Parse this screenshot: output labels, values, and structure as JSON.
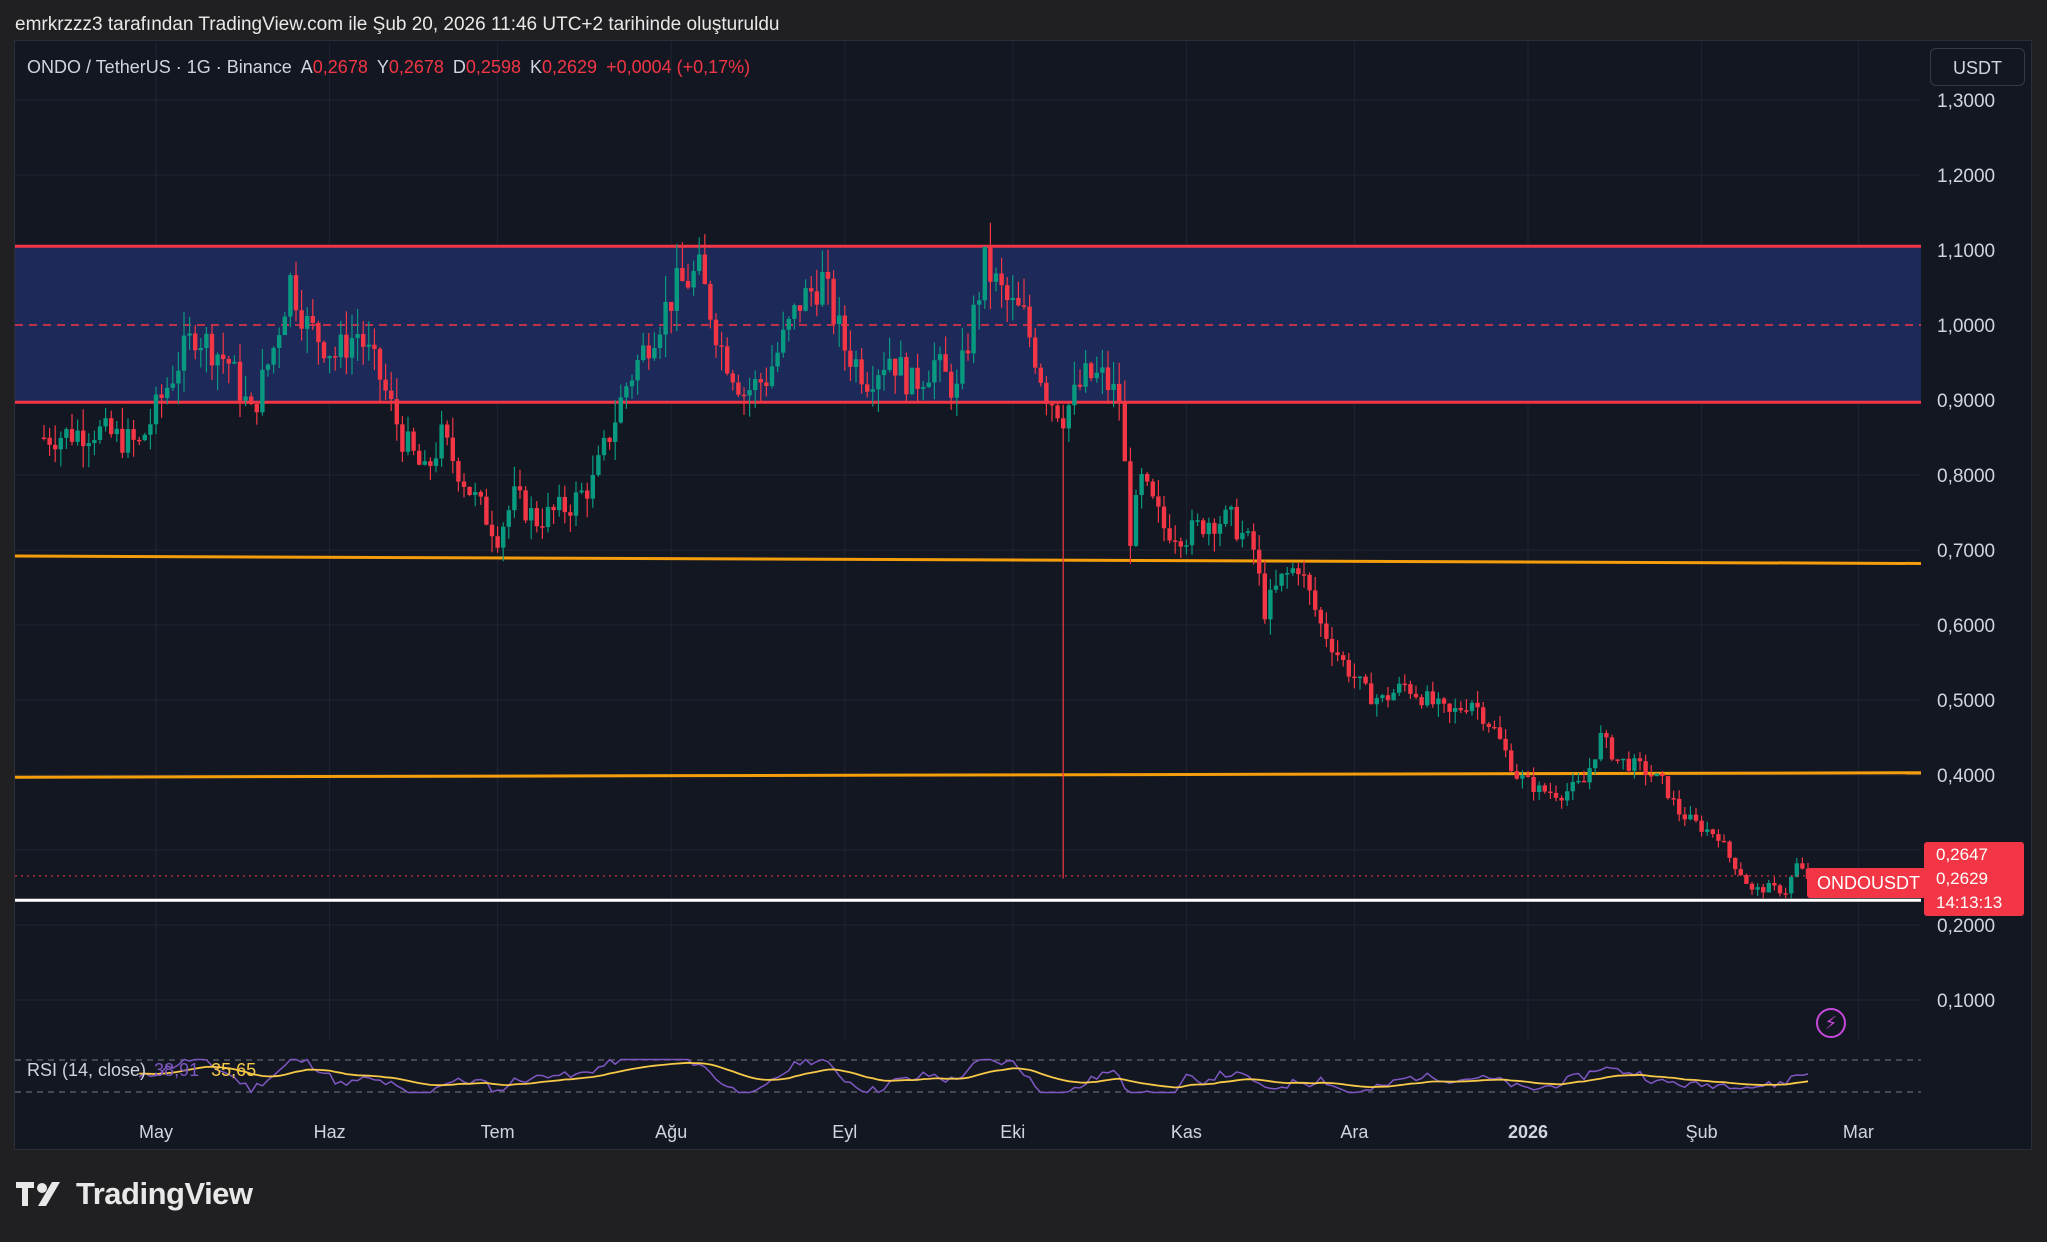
{
  "caption": "emrkrzzz3 tarafından TradingView.com ile Şub 20, 2026 11:46 UTC+2 tarihinde oluşturuldu",
  "legend": {
    "pair": "ONDO / TetherUS · 1G · Binance",
    "open_label": "A",
    "open": "0,2678",
    "high_label": "Y",
    "high": "0,2678",
    "low_label": "D",
    "low": "0,2598",
    "close_label": "K",
    "close": "0,2629",
    "change": "+0,0004 (+0,17%)"
  },
  "currency": "USDT",
  "symbol_tag": "ONDOUSDT",
  "price_tag": {
    "line1": "0,2647",
    "line2": "0,2629",
    "line3": "14:13:13"
  },
  "rsi": {
    "label": "RSI (14, close)",
    "rsi_value": "38,91",
    "ma_value": "35,65"
  },
  "brand": "TradingView",
  "colors": {
    "background": "#131722",
    "up": "#089981",
    "down": "#f23645",
    "zone": "#1e2a5c",
    "zone_line": "#f23645",
    "support": "#f59e0b",
    "floor": "#ffffff",
    "rsi": "#7e57c2",
    "rsi_ma": "#f7c948"
  },
  "chart_data": {
    "type": "candlestick",
    "y_axis": {
      "range": [
        0.05,
        1.35
      ],
      "ticks": [
        "1,3000",
        "1,2000",
        "1,1000",
        "1,0000",
        "0,9000",
        "0,8000",
        "0,7000",
        "0,6000",
        "0,5000",
        "0,4000",
        "0,3000",
        "0,2000",
        "0,1000"
      ],
      "tick_values": [
        1.3,
        1.2,
        1.1,
        1.0,
        0.9,
        0.8,
        0.7,
        0.6,
        0.5,
        0.4,
        0.3,
        0.2,
        0.1
      ]
    },
    "x_axis": {
      "months": [
        {
          "label": "May",
          "date": "2025-05-01"
        },
        {
          "label": "Haz",
          "date": "2025-06-01"
        },
        {
          "label": "Tem",
          "date": "2025-07-01"
        },
        {
          "label": "Ağu",
          "date": "2025-08-01"
        },
        {
          "label": "Eyl",
          "date": "2025-09-01"
        },
        {
          "label": "Eki",
          "date": "2025-10-01"
        },
        {
          "label": "Kas",
          "date": "2025-11-01"
        },
        {
          "label": "Ara",
          "date": "2025-12-01"
        },
        {
          "label": "2026",
          "date": "2026-01-01"
        },
        {
          "label": "Şub",
          "date": "2026-02-01"
        },
        {
          "label": "Mar",
          "date": "2026-03-01"
        }
      ],
      "start": "2025-04-11",
      "end": "2026-02-20"
    },
    "close_path": [
      [
        "2025-04-11",
        0.85
      ],
      [
        "2025-04-20",
        0.86
      ],
      [
        "2025-04-28",
        0.84
      ],
      [
        "2025-05-05",
        0.95
      ],
      [
        "2025-05-08",
        0.99
      ],
      [
        "2025-05-14",
        0.95
      ],
      [
        "2025-05-18",
        0.88
      ],
      [
        "2025-05-22",
        0.97
      ],
      [
        "2025-05-25",
        1.06
      ],
      [
        "2025-05-28",
        1.0
      ],
      [
        "2025-06-02",
        0.96
      ],
      [
        "2025-06-06",
        0.99
      ],
      [
        "2025-06-10",
        0.93
      ],
      [
        "2025-06-14",
        0.85
      ],
      [
        "2025-06-18",
        0.8
      ],
      [
        "2025-06-21",
        0.85
      ],
      [
        "2025-06-26",
        0.78
      ],
      [
        "2025-07-01",
        0.72
      ],
      [
        "2025-07-04",
        0.77
      ],
      [
        "2025-07-08",
        0.74
      ],
      [
        "2025-07-14",
        0.76
      ],
      [
        "2025-07-18",
        0.79
      ],
      [
        "2025-07-24",
        0.92
      ],
      [
        "2025-07-28",
        0.98
      ],
      [
        "2025-08-02",
        1.05
      ],
      [
        "2025-08-06",
        1.07
      ],
      [
        "2025-08-10",
        0.97
      ],
      [
        "2025-08-14",
        0.91
      ],
      [
        "2025-08-18",
        0.93
      ],
      [
        "2025-08-24",
        1.03
      ],
      [
        "2025-08-28",
        1.06
      ],
      [
        "2025-09-01",
        0.97
      ],
      [
        "2025-09-05",
        0.93
      ],
      [
        "2025-09-09",
        0.96
      ],
      [
        "2025-09-13",
        0.92
      ],
      [
        "2025-09-17",
        0.95
      ],
      [
        "2025-09-21",
        0.91
      ],
      [
        "2025-09-26",
        1.08
      ],
      [
        "2025-09-30",
        1.03
      ],
      [
        "2025-10-03",
        1.01
      ],
      [
        "2025-10-07",
        0.91
      ],
      [
        "2025-10-10",
        0.88
      ],
      [
        "2025-10-14",
        0.93
      ],
      [
        "2025-10-17",
        0.93
      ],
      [
        "2025-10-20",
        0.9
      ],
      [
        "2025-10-22",
        0.72
      ],
      [
        "2025-10-24",
        0.79
      ],
      [
        "2025-10-28",
        0.73
      ],
      [
        "2025-11-01",
        0.72
      ],
      [
        "2025-11-05",
        0.74
      ],
      [
        "2025-11-09",
        0.74
      ],
      [
        "2025-11-13",
        0.7
      ],
      [
        "2025-11-15",
        0.62
      ],
      [
        "2025-11-18",
        0.66
      ],
      [
        "2025-11-21",
        0.68
      ],
      [
        "2025-11-25",
        0.6
      ],
      [
        "2025-11-29",
        0.55
      ],
      [
        "2025-12-03",
        0.51
      ],
      [
        "2025-12-06",
        0.5
      ],
      [
        "2025-12-10",
        0.52
      ],
      [
        "2025-12-14",
        0.5
      ],
      [
        "2025-12-18",
        0.48
      ],
      [
        "2025-12-22",
        0.5
      ],
      [
        "2025-12-26",
        0.46
      ],
      [
        "2025-12-30",
        0.4
      ],
      [
        "2026-01-03",
        0.38
      ],
      [
        "2026-01-07",
        0.375
      ],
      [
        "2026-01-11",
        0.39
      ],
      [
        "2026-01-14",
        0.45
      ],
      [
        "2026-01-17",
        0.42
      ],
      [
        "2026-01-21",
        0.41
      ],
      [
        "2026-01-25",
        0.39
      ],
      [
        "2026-01-28",
        0.35
      ],
      [
        "2026-02-01",
        0.33
      ],
      [
        "2026-02-04",
        0.32
      ],
      [
        "2026-02-06",
        0.29
      ],
      [
        "2026-02-08",
        0.27
      ],
      [
        "2026-02-10",
        0.245
      ],
      [
        "2026-02-13",
        0.25
      ],
      [
        "2026-02-16",
        0.245
      ],
      [
        "2026-02-18",
        0.28
      ],
      [
        "2026-02-20",
        0.2629
      ]
    ],
    "levels": [
      {
        "type": "zone",
        "top": 1.105,
        "bottom": 0.897,
        "mid": 1.0
      },
      {
        "type": "line",
        "from": [
          "2025-04-11",
          0.692
        ],
        "to": [
          "2026-03-08",
          0.682
        ]
      },
      {
        "type": "line",
        "from": [
          "2025-04-11",
          0.397
        ],
        "to": [
          "2026-03-08",
          0.403
        ]
      },
      {
        "type": "line",
        "from": [
          "2025-04-11",
          0.233
        ],
        "to": [
          "2026-03-08",
          0.233
        ]
      }
    ],
    "wick_extreme": {
      "date": "2025-10-10",
      "low": 0.262
    }
  }
}
